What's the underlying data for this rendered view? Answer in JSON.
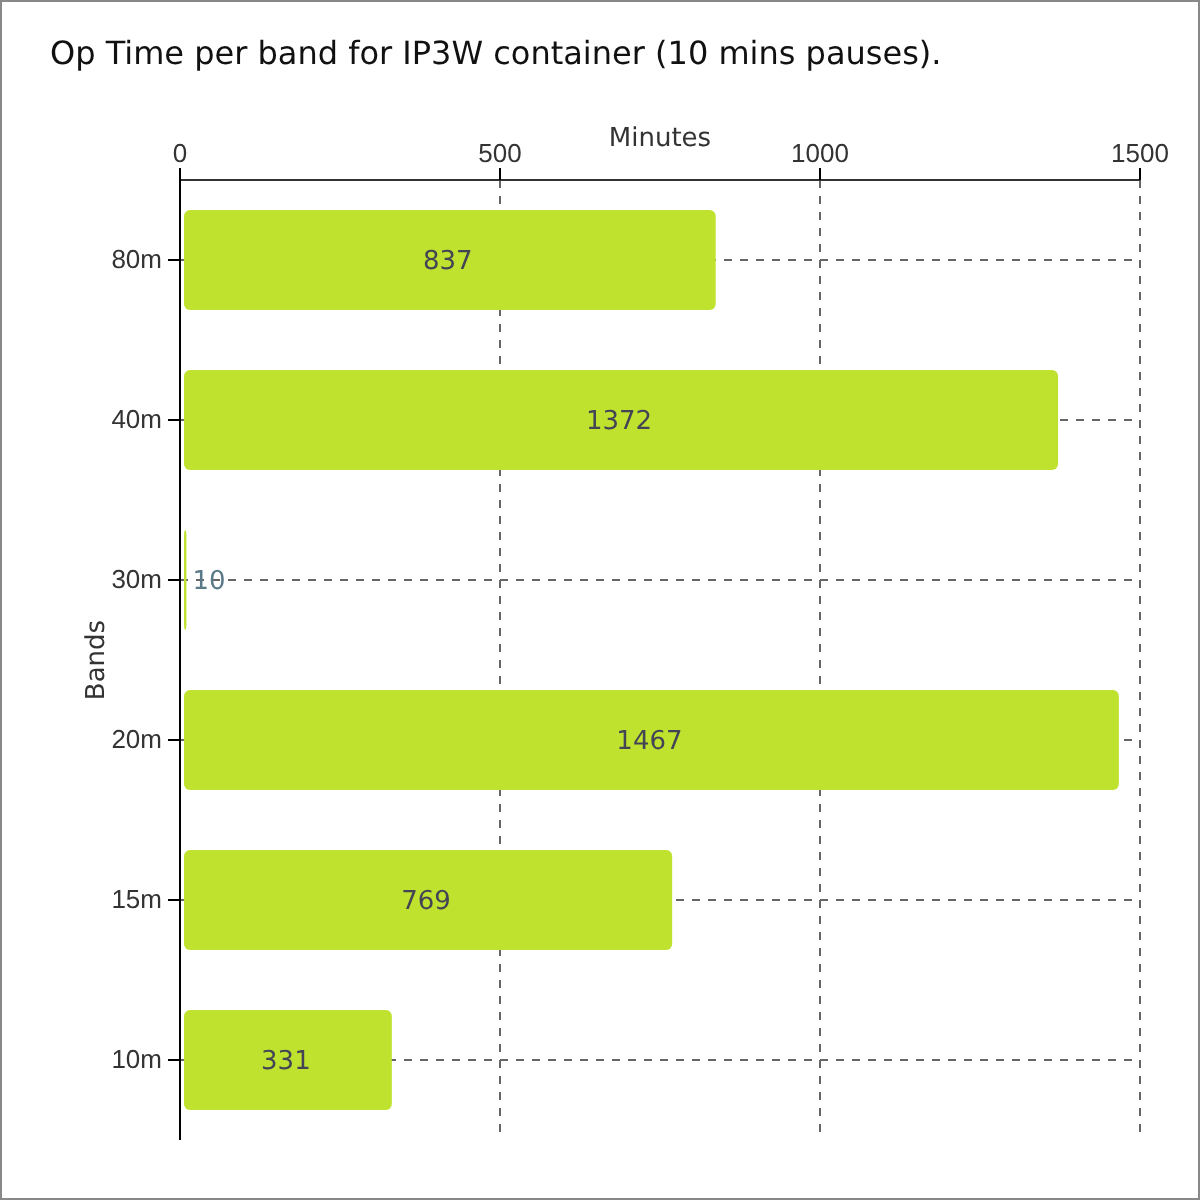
{
  "chart_data": {
    "type": "bar",
    "orientation": "horizontal",
    "title": "Op Time per band for IP3W container (10 mins pauses).",
    "xlabel": "Minutes",
    "ylabel": "Bands",
    "categories": [
      "80m",
      "40m",
      "30m",
      "20m",
      "15m",
      "10m"
    ],
    "values": [
      837,
      1372,
      10,
      1467,
      769,
      331
    ],
    "color": "#bfe22f",
    "xlim": [
      0,
      1500
    ],
    "xticks": [
      0,
      500,
      1000,
      1500
    ],
    "grid": true,
    "data_labels": true
  }
}
